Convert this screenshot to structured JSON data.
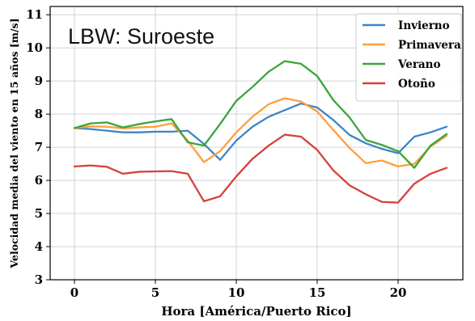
{
  "chart_data": {
    "type": "line",
    "title": "LBW: Suroeste",
    "xlabel": "Hora [América/Puerto Rico]",
    "ylabel": "Velocidad media del viento en 15 años [m/s]",
    "xlim": [
      -1.5,
      24.0
    ],
    "ylim": [
      3,
      11.25
    ],
    "xticks": [
      "0",
      "5",
      "10",
      "15",
      "20"
    ],
    "yticks": [
      "3",
      "4",
      "5",
      "6",
      "7",
      "8",
      "9",
      "10",
      "11"
    ],
    "grid": true,
    "legend_position": "top-right",
    "x": [
      0,
      1,
      2,
      3,
      4,
      5,
      6,
      7,
      8,
      9,
      10,
      11,
      12,
      13,
      14,
      15,
      16,
      17,
      18,
      19,
      20,
      21,
      22,
      23
    ],
    "series": [
      {
        "name": "Invierno",
        "color": "#3a86c6",
        "values": [
          7.58,
          7.55,
          7.5,
          7.45,
          7.45,
          7.47,
          7.47,
          7.5,
          7.1,
          6.62,
          7.2,
          7.62,
          7.92,
          8.12,
          8.32,
          8.2,
          7.82,
          7.37,
          7.12,
          6.95,
          6.82,
          7.32,
          7.45,
          7.62
        ]
      },
      {
        "name": "Primavera",
        "color": "#ff9e3d",
        "values": [
          7.58,
          7.63,
          7.62,
          7.57,
          7.6,
          7.62,
          7.72,
          7.2,
          6.55,
          6.88,
          7.45,
          7.92,
          8.3,
          8.48,
          8.38,
          8.08,
          7.52,
          6.98,
          6.52,
          6.6,
          6.42,
          6.5,
          7.02,
          7.35
        ]
      },
      {
        "name": "Verano",
        "color": "#3aa53a",
        "values": [
          7.58,
          7.72,
          7.75,
          7.6,
          7.7,
          7.78,
          7.85,
          7.15,
          7.05,
          7.7,
          8.4,
          8.82,
          9.28,
          9.6,
          9.52,
          9.15,
          8.42,
          7.9,
          7.22,
          7.07,
          6.88,
          6.38,
          7.05,
          7.4
        ]
      },
      {
        "name": "Otoño",
        "color": "#d8403d",
        "values": [
          6.42,
          6.45,
          6.41,
          6.2,
          6.26,
          6.27,
          6.28,
          6.2,
          5.37,
          5.52,
          6.12,
          6.65,
          7.05,
          7.38,
          7.32,
          6.92,
          6.3,
          5.85,
          5.58,
          5.35,
          5.33,
          5.9,
          6.2,
          6.38
        ]
      }
    ]
  }
}
